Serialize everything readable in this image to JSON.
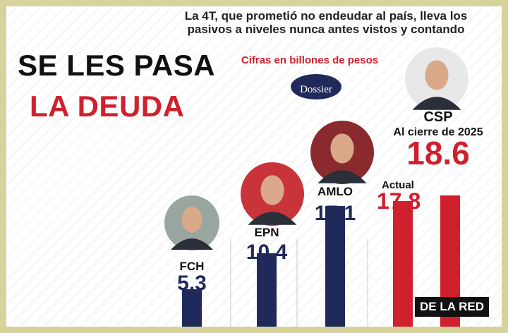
{
  "headline": {
    "line1": "SE LES PASA",
    "line2": "LA DEUDA"
  },
  "subtitle": "La 4T, que prometió no endeudar al país, lleva los pasivos a niveles nunca antes vistos y contando",
  "units_note": "Cifras en billones de pesos",
  "logo": "Dossier",
  "watermark": "DE LA RED",
  "colors": {
    "navy": "#1f2a5a",
    "red": "#d0202e",
    "frame": "#d8d29b"
  },
  "chart_data": {
    "type": "bar",
    "title": "",
    "xlabel": "",
    "ylabel": "",
    "ylim": [
      0,
      20
    ],
    "grid": false,
    "categories": [
      "FCH",
      "EPN",
      "AMLO",
      "Actual",
      "Al cierre de 2025"
    ],
    "values": [
      5.3,
      10.4,
      17.1,
      17.8,
      18.6
    ],
    "group_label": "CSP",
    "value_labels": [
      "5.3",
      "10.4",
      "17.1",
      "17.8",
      "18.6"
    ],
    "bar_colors": [
      "#1f2a5a",
      "#1f2a5a",
      "#1f2a5a",
      "#d0202e",
      "#d0202e"
    ]
  }
}
